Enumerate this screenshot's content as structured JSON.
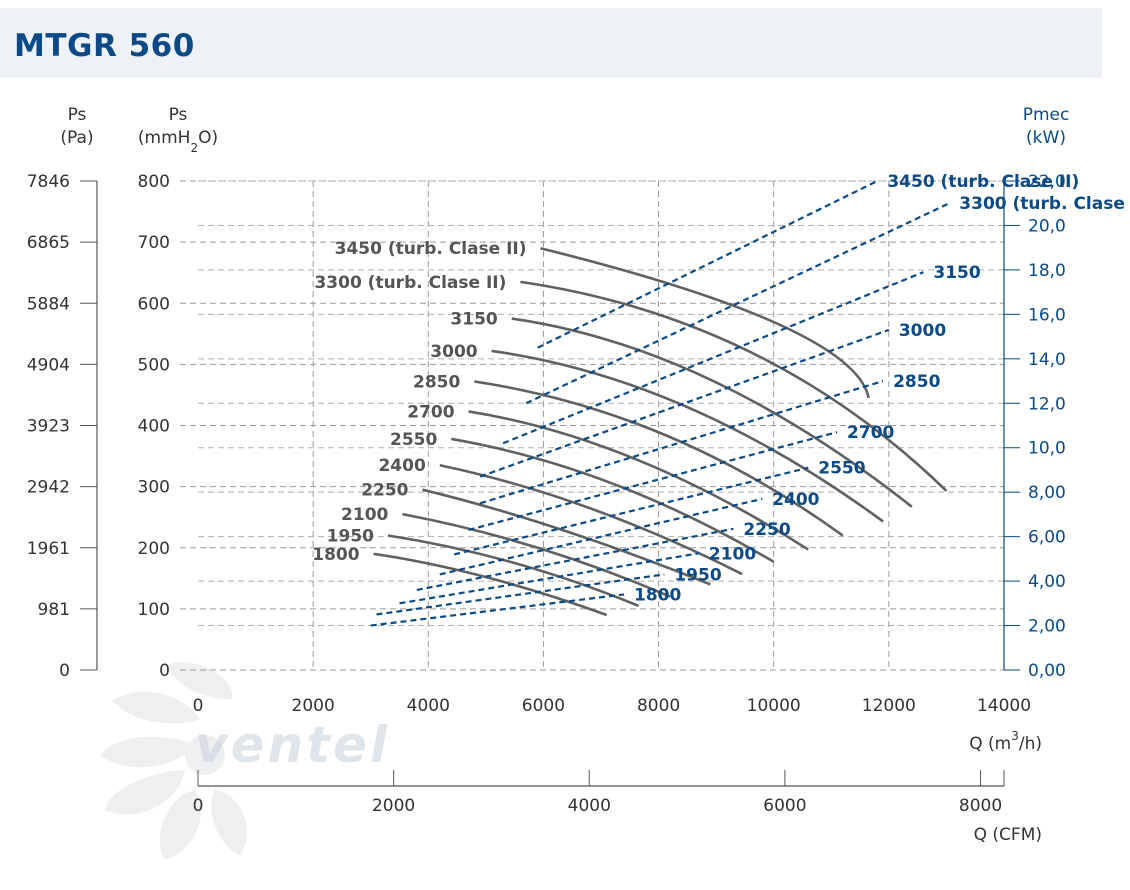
{
  "title": "MTGR 560",
  "watermark": "ventel",
  "chart_data": {
    "type": "line",
    "axes": {
      "ps_pa": {
        "label": "Ps",
        "unit": "(Pa)",
        "ticks": [
          "0",
          "981",
          "1961",
          "2942",
          "3923",
          "4904",
          "5884",
          "6865",
          "7846"
        ]
      },
      "ps_mm": {
        "label": "Ps",
        "unit_main": "(mmH",
        "unit_sub": "2",
        "unit_end": "O)",
        "ticks": [
          "0",
          "100",
          "200",
          "300",
          "400",
          "500",
          "600",
          "700",
          "800"
        ],
        "range": [
          0,
          800
        ]
      },
      "pmec": {
        "label": "Pmec",
        "unit": "(kW)",
        "ticks": [
          "0,00",
          "2,00",
          "4,00",
          "6,00",
          "8,00",
          "10,0",
          "12,0",
          "14,0",
          "16,0",
          "18,0",
          "20,0",
          "22,0"
        ],
        "range": [
          0,
          22
        ]
      },
      "q_m3h": {
        "label_main": "Q (m",
        "label_sup": "3",
        "label_end": "/h)",
        "ticks": [
          "0",
          "2000",
          "4000",
          "6000",
          "8000",
          "10000",
          "12000",
          "14000"
        ],
        "range": [
          0,
          14000
        ]
      },
      "q_cfm": {
        "label": "Q (CFM)",
        "ticks": [
          "0",
          "2000",
          "4000",
          "6000",
          "8000"
        ],
        "range": [
          0,
          8240
        ]
      }
    },
    "grid": true,
    "pressure_series": [
      {
        "name": "1800",
        "points": [
          [
            3050,
            190
          ],
          [
            5000,
            152
          ],
          [
            7100,
            90
          ]
        ]
      },
      {
        "name": "1950",
        "points": [
          [
            3300,
            220
          ],
          [
            5500,
            175
          ],
          [
            7650,
            105
          ]
        ]
      },
      {
        "name": "2100",
        "points": [
          [
            3550,
            255
          ],
          [
            5900,
            200
          ],
          [
            8200,
            120
          ]
        ]
      },
      {
        "name": "2250",
        "points": [
          [
            3900,
            295
          ],
          [
            6300,
            230
          ],
          [
            8900,
            140
          ]
        ]
      },
      {
        "name": "2400",
        "points": [
          [
            4200,
            335
          ],
          [
            6800,
            265
          ],
          [
            9450,
            157
          ]
        ]
      },
      {
        "name": "2550",
        "points": [
          [
            4400,
            378
          ],
          [
            7200,
            305
          ],
          [
            10000,
            177
          ]
        ]
      },
      {
        "name": "2700",
        "points": [
          [
            4700,
            423
          ],
          [
            7600,
            345
          ],
          [
            10600,
            197
          ]
        ]
      },
      {
        "name": "2850",
        "points": [
          [
            4800,
            472
          ],
          [
            8100,
            385
          ],
          [
            11200,
            220
          ]
        ]
      },
      {
        "name": "3000",
        "points": [
          [
            5100,
            522
          ],
          [
            8500,
            430
          ],
          [
            11900,
            243
          ]
        ]
      },
      {
        "name": "3150",
        "points": [
          [
            5450,
            575
          ],
          [
            8900,
            475
          ],
          [
            12400,
            267
          ]
        ]
      },
      {
        "name": "3300 (turb. Clase II)",
        "points": [
          [
            5600,
            635
          ],
          [
            9600,
            520
          ],
          [
            13000,
            293
          ]
        ]
      },
      {
        "name": "3450 (turb. Clase II)",
        "points": [
          [
            5950,
            690
          ],
          [
            10100,
            565
          ],
          [
            11650,
            445
          ]
        ]
      }
    ],
    "power_series": [
      {
        "name": "1800",
        "points": [
          [
            3000,
            2.0
          ],
          [
            7400,
            3.4
          ]
        ]
      },
      {
        "name": "1950",
        "points": [
          [
            3100,
            2.5
          ],
          [
            8100,
            4.3
          ]
        ]
      },
      {
        "name": "2100",
        "points": [
          [
            3500,
            3.0
          ],
          [
            8700,
            5.25
          ]
        ]
      },
      {
        "name": "2250",
        "points": [
          [
            3800,
            3.6
          ],
          [
            9300,
            6.35
          ]
        ]
      },
      {
        "name": "2400",
        "points": [
          [
            4200,
            4.3
          ],
          [
            9800,
            7.7
          ]
        ]
      },
      {
        "name": "2550",
        "points": [
          [
            4450,
            5.2
          ],
          [
            10600,
            9.1
          ]
        ]
      },
      {
        "name": "2700",
        "points": [
          [
            4700,
            6.3
          ],
          [
            11100,
            10.7
          ]
        ]
      },
      {
        "name": "2850",
        "points": [
          [
            4900,
            7.5
          ],
          [
            11900,
            13.0
          ]
        ]
      },
      {
        "name": "3000",
        "points": [
          [
            4900,
            8.7
          ],
          [
            12000,
            15.3
          ]
        ]
      },
      {
        "name": "3150",
        "points": [
          [
            5300,
            10.2
          ],
          [
            12600,
            17.9
          ]
        ]
      },
      {
        "name": "3300 (turb. Clase II)",
        "points": [
          [
            5700,
            12.0
          ],
          [
            13050,
            21.0
          ]
        ]
      },
      {
        "name": "3450 (turb. Clase II)",
        "points": [
          [
            5900,
            14.5
          ],
          [
            11800,
            22.0
          ]
        ]
      }
    ]
  }
}
